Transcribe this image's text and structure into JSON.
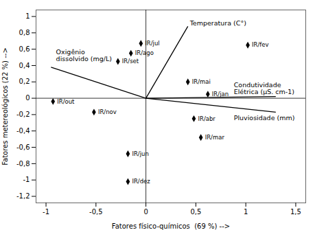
{
  "chart_data": {
    "type": "biplot",
    "color": "#000000",
    "marker": "diamond",
    "xlabel": "Fatores físico-químicos  (69 %) -->",
    "ylabel": "Fatores metereológicos (22 %) -->",
    "points": [
      {
        "label": "IR/jul",
        "x": -0.05,
        "y": 0.67
      },
      {
        "label": "IR/ago",
        "x": -0.15,
        "y": 0.55
      },
      {
        "label": "IR/set",
        "x": -0.28,
        "y": 0.45
      },
      {
        "label": "IR/out",
        "x": -0.93,
        "y": -0.04
      },
      {
        "label": "IR/nov",
        "x": -0.52,
        "y": -0.17
      },
      {
        "label": "IR/dez",
        "x": -0.18,
        "y": -1.02
      },
      {
        "label": "IR/jan",
        "x": 0.62,
        "y": 0.05
      },
      {
        "label": "IR/fev",
        "x": 1.02,
        "y": 0.65
      },
      {
        "label": "IR/mar",
        "x": 0.55,
        "y": -0.48
      },
      {
        "label": "IR/abr",
        "x": 0.48,
        "y": -0.25
      },
      {
        "label": "IR/mai",
        "x": 0.42,
        "y": 0.2
      },
      {
        "label": "IR/jun",
        "x": -0.18,
        "y": -0.68
      }
    ],
    "vectors": [
      {
        "x": 0.42,
        "y": 0.88
      },
      {
        "x": 1.3,
        "y": 0.02
      },
      {
        "x": 1.3,
        "y": -0.17
      },
      {
        "x": -0.95,
        "y": 0.38
      }
    ],
    "annotations": [
      {
        "text": "Temperatura (C°)",
        "x": 0.44,
        "y": 0.92
      },
      {
        "text": "Condutividade\nElétrica (μS. cm-1)",
        "x": 0.88,
        "y": 0.12
      },
      {
        "text": "Pluviosidade (mm)",
        "x": 0.88,
        "y": -0.24
      },
      {
        "text": "Oxigênio\ndissolvido (mg/L)",
        "x": -0.9,
        "y": 0.52
      }
    ],
    "xlim": [
      -1.1,
      1.6
    ],
    "ylim": [
      -1.28,
      1.08
    ],
    "xticks": [
      -1,
      {
        "value": -0.5,
        "label": "-0,5"
      },
      0,
      {
        "value": 0.5,
        "label": "0,5"
      },
      1,
      {
        "value": 1.5,
        "label": "1,5"
      }
    ],
    "yticks": [
      {
        "value": -1.2,
        "label": "-1,2"
      },
      -1,
      {
        "value": -0.8,
        "label": "-0,8"
      },
      {
        "value": -0.6,
        "label": "-0,6"
      },
      {
        "value": -0.4,
        "label": "-0,4"
      },
      {
        "value": -0.2,
        "label": "-0,2"
      },
      0,
      {
        "value": 0.2,
        "label": "0,2"
      },
      {
        "value": 0.4,
        "label": "0,4"
      },
      {
        "value": 0.6,
        "label": "0,6"
      },
      {
        "value": 0.8,
        "label": "0,8"
      },
      1
    ]
  }
}
